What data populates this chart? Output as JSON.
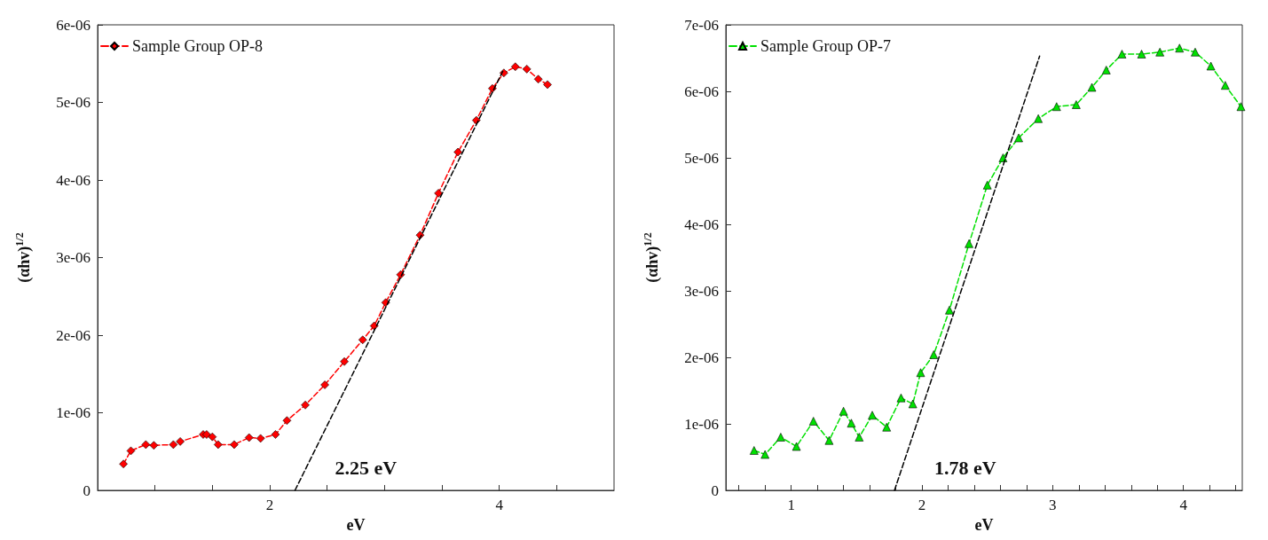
{
  "chart_data": [
    {
      "type": "line",
      "xlabel": "eV",
      "ylabel": "(αhv)$^{1/2}$",
      "legend": "top left",
      "marker": "diamond",
      "line_style": "dashed",
      "grid": false,
      "xlim": [
        0.5,
        5
      ],
      "ylim": [
        0,
        6e-06
      ],
      "xticks": [
        {
          "value": 1,
          "label": null
        },
        {
          "value": 1.5,
          "label": null
        },
        2,
        {
          "value": 2.5,
          "label": null
        },
        {
          "value": 3,
          "label": null
        },
        {
          "value": 3.5,
          "label": null
        },
        4,
        {
          "value": 4.5,
          "label": null
        }
      ],
      "yticks": [
        0,
        {
          "value": 1e-06,
          "label": "1e-06"
        },
        {
          "value": 2e-06,
          "label": "2e-06"
        },
        {
          "value": 3e-06,
          "label": "3e-06"
        },
        {
          "value": 4e-06,
          "label": "4e-06"
        },
        {
          "value": 5e-06,
          "label": "5e-06"
        },
        {
          "value": 6e-06,
          "label": "6e-06"
        }
      ],
      "annotations": [
        "2.25 eV"
      ],
      "series": [
        {
          "name": "Sample Group OP-8",
          "color": "#ff0000",
          "x": [
            0.725,
            0.79,
            0.92,
            0.99,
            1.16,
            1.22,
            1.42,
            1.45,
            1.5,
            1.55,
            1.69,
            1.82,
            1.92,
            2.05,
            2.15,
            2.31,
            2.48,
            2.65,
            2.81,
            2.91,
            3.01,
            3.14,
            3.31,
            3.47,
            3.64,
            3.8,
            3.94,
            4.04,
            4.14,
            4.24,
            4.34,
            4.42
          ],
          "values": [
            3.4e-07,
            5.1e-07,
            5.9e-07,
            5.8e-07,
            5.9e-07,
            6.3e-07,
            7.2e-07,
            7.2e-07,
            6.9e-07,
            5.9e-07,
            5.9e-07,
            6.8e-07,
            6.7e-07,
            7.2e-07,
            9e-07,
            1.1e-06,
            1.36e-06,
            1.66e-06,
            1.94e-06,
            2.12e-06,
            2.42e-06,
            2.78e-06,
            3.29e-06,
            3.83e-06,
            4.36e-06,
            4.77e-06,
            5.18e-06,
            5.38e-06,
            5.46e-06,
            5.43e-06,
            5.3e-06,
            5.23e-06
          ]
        },
        {
          "type": "line",
          "color": "#000000",
          "line_style": "dashed",
          "marker": "none",
          "x": [
            2.22,
            4.03
          ],
          "values": [
            0,
            5.4e-06
          ]
        }
      ]
    },
    {
      "type": "line",
      "xlabel": "eV",
      "ylabel": "(αhv)$^{1/2}$",
      "legend": "top left",
      "marker": "triangle",
      "line_style": "dashed",
      "grid": false,
      "xlim": [
        0.5,
        4.45
      ],
      "ylim": [
        0,
        7e-06
      ],
      "xticks": [
        {
          "value": 0.6,
          "label": null
        },
        {
          "value": 0.8,
          "label": null
        },
        1,
        {
          "value": 1.2,
          "label": null
        },
        {
          "value": 1.4,
          "label": null
        },
        {
          "value": 1.6,
          "label": null
        },
        {
          "value": 1.8,
          "label": null
        },
        2,
        {
          "value": 2.2,
          "label": null
        },
        {
          "value": 2.4,
          "label": null
        },
        {
          "value": 2.6,
          "label": null
        },
        {
          "value": 2.8,
          "label": null
        },
        3,
        {
          "value": 3.2,
          "label": null
        },
        {
          "value": 3.4,
          "label": null
        },
        {
          "value": 3.6,
          "label": null
        },
        {
          "value": 3.8,
          "label": null
        },
        4,
        {
          "value": 4.2,
          "label": null
        },
        {
          "value": 4.4,
          "label": null
        }
      ],
      "yticks": [
        0,
        {
          "value": 1e-06,
          "label": "1e-06"
        },
        {
          "value": 2e-06,
          "label": "2e-06"
        },
        {
          "value": 3e-06,
          "label": "3e-06"
        },
        {
          "value": 4e-06,
          "label": "4e-06"
        },
        {
          "value": 5e-06,
          "label": "5e-06"
        },
        {
          "value": 6e-06,
          "label": "6e-06"
        },
        {
          "value": 7e-06,
          "label": "7e-06"
        }
      ],
      "annotations": [
        "1.78 eV"
      ],
      "series": [
        {
          "name": "Sample Group OP-7",
          "color": "#00e000",
          "x": [
            0.716,
            0.8,
            0.92,
            1.04,
            1.17,
            1.29,
            1.4,
            1.46,
            1.52,
            1.62,
            1.73,
            1.84,
            1.93,
            1.99,
            2.09,
            2.21,
            2.36,
            2.5,
            2.62,
            2.74,
            2.89,
            3.03,
            3.18,
            3.3,
            3.41,
            3.53,
            3.68,
            3.82,
            3.97,
            4.09,
            4.21,
            4.32,
            4.44
          ],
          "values": [
            6e-07,
            5.4e-07,
            8e-07,
            6.6e-07,
            1.04e-06,
            7.5e-07,
            1.19e-06,
            1.01e-06,
            8e-07,
            1.13e-06,
            9.5e-07,
            1.39e-06,
            1.3e-06,
            1.77e-06,
            2.04e-06,
            2.71e-06,
            3.71e-06,
            4.59e-06,
            5e-06,
            5.3e-06,
            5.59e-06,
            5.77e-06,
            5.8e-06,
            6.06e-06,
            6.32e-06,
            6.56e-06,
            6.56e-06,
            6.59e-06,
            6.65e-06,
            6.59e-06,
            6.38e-06,
            6.09e-06,
            5.77e-06
          ]
        },
        {
          "type": "line",
          "color": "#000000",
          "line_style": "dashed",
          "marker": "none",
          "x": [
            1.79,
            2.9
          ],
          "values": [
            0,
            6.53e-06
          ]
        }
      ]
    }
  ]
}
